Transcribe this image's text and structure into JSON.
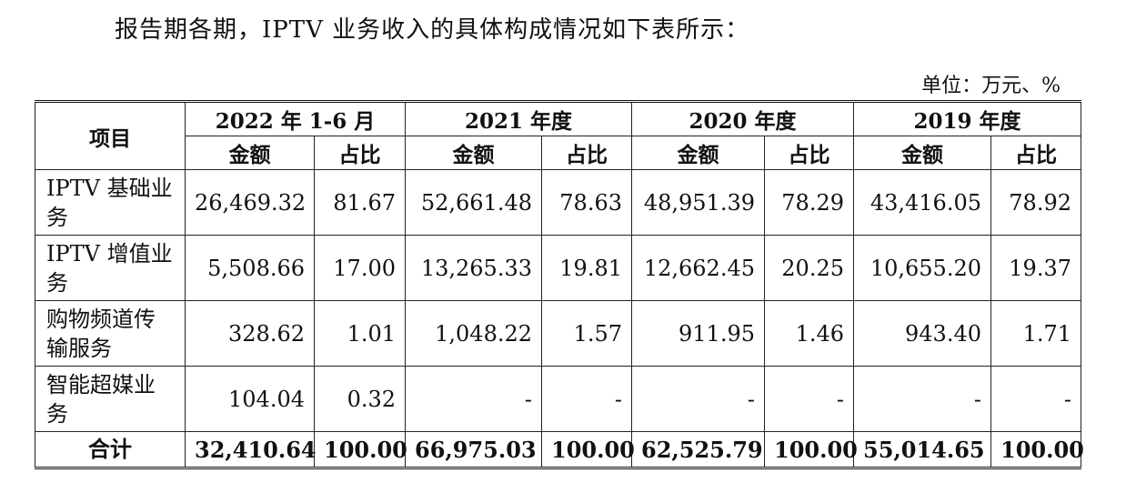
{
  "intro_text": "报告期各期，IPTV 业务收入的具体构成情况如下表所示：",
  "unit_label": "单位：万元、%",
  "table": {
    "item_header": "项目",
    "periods": [
      "2022 年 1-6 月",
      "2021 年度",
      "2020 年度",
      "2019 年度"
    ],
    "sub_headers": [
      "金额",
      "占比",
      "金额",
      "占比",
      "金额",
      "占比",
      "金额",
      "占比"
    ],
    "rows": [
      {
        "label": "IPTV 基础业务",
        "cells": [
          "26,469.32",
          "81.67",
          "52,661.48",
          "78.63",
          "48,951.39",
          "78.29",
          "43,416.05",
          "78.92"
        ]
      },
      {
        "label": "IPTV 增值业务",
        "cells": [
          "5,508.66",
          "17.00",
          "13,265.33",
          "19.81",
          "12,662.45",
          "20.25",
          "10,655.20",
          "19.37"
        ]
      },
      {
        "label": "购物频道传输服务",
        "cells": [
          "328.62",
          "1.01",
          "1,048.22",
          "1.57",
          "911.95",
          "1.46",
          "943.40",
          "1.71"
        ]
      },
      {
        "label": "智能超媒业务",
        "cells": [
          "104.04",
          "0.32",
          "-",
          "-",
          "-",
          "-",
          "-",
          "-"
        ]
      }
    ],
    "total": {
      "label": "合计",
      "cells": [
        "32,410.64",
        "100.00",
        "66,975.03",
        "100.00",
        "62,525.79",
        "100.00",
        "55,014.65",
        "100.00"
      ]
    }
  }
}
